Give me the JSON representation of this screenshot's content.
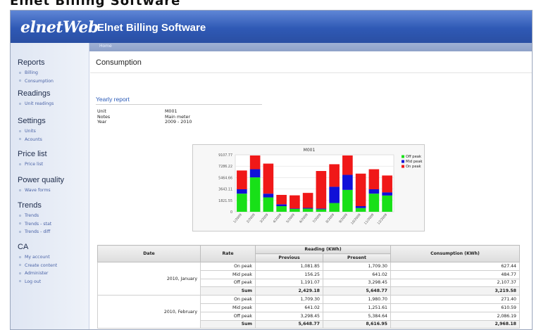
{
  "app": {
    "logo": "elnetWeb",
    "title": "Elnet Billing Software"
  },
  "breadcrumb": "Home",
  "sidebar": {
    "sections": [
      {
        "title": "Reports",
        "items": [
          "Billing",
          "Consumption"
        ]
      },
      {
        "title": "Readings",
        "items": [
          "Unit readings"
        ]
      },
      {
        "title": "Settings",
        "items": [
          "Units",
          "Acounts"
        ]
      },
      {
        "title": "Price list",
        "items": [
          "Price list"
        ]
      },
      {
        "title": "Power quality",
        "items": [
          "Wave forms"
        ]
      },
      {
        "title": "Trends",
        "items": [
          "Trends",
          "Trends - stat",
          "Trends - diff"
        ]
      },
      {
        "title": "CA",
        "items": [
          "My account",
          "Create content",
          "Administer",
          "Log out"
        ]
      }
    ]
  },
  "page": {
    "title": "Consumption",
    "report_title": "Yearly report",
    "meta": [
      {
        "key": "Unit",
        "value": "M001"
      },
      {
        "key": "Notes",
        "value": "Main meter"
      },
      {
        "key": "Year",
        "value": "2009 - 2010"
      }
    ]
  },
  "chart_data": {
    "type": "bar",
    "stacked": true,
    "title": "M001",
    "categories": [
      "1/2009",
      "2/2009",
      "3/2009",
      "4/2009",
      "5/2009",
      "6/2009",
      "7/2009",
      "8/2009",
      "9/2009",
      "10/2009",
      "11/2009",
      "12/2009"
    ],
    "y_ticks": [
      "0",
      "1821.55",
      "3643.11",
      "5464.66",
      "7286.22",
      "9107.77"
    ],
    "ylim": [
      0,
      9107.77
    ],
    "series": [
      {
        "name": "Off peak",
        "color": "#18e018",
        "values": [
          2900,
          5500,
          2300,
          900,
          450,
          500,
          400,
          1400,
          3500,
          600,
          2900,
          2600
        ]
      },
      {
        "name": "Mid peak",
        "color": "#1010d8",
        "values": [
          700,
          1300,
          600,
          300,
          80,
          120,
          120,
          2600,
          2400,
          300,
          700,
          500
        ]
      },
      {
        "name": "On peak",
        "color": "#f01818",
        "values": [
          3000,
          2200,
          4800,
          1500,
          2100,
          2400,
          6000,
          3600,
          3100,
          5200,
          3200,
          2700
        ]
      }
    ],
    "legend_position": "top-right",
    "grid": true
  },
  "table": {
    "headers": {
      "date": "Date",
      "rate": "Rate",
      "reading": "Reading (KWh)",
      "previous": "Previous",
      "present": "Present",
      "consumption": "Consumption (KWh)"
    },
    "groups": [
      {
        "date": "2010, January",
        "rows": [
          {
            "rate": "On peak",
            "previous": "1,081.85",
            "present": "1,709.30",
            "consumption": "627.44"
          },
          {
            "rate": "Mid peak",
            "previous": "156.25",
            "present": "641.02",
            "consumption": "484.77"
          },
          {
            "rate": "Off peak",
            "previous": "1,191.07",
            "present": "3,298.45",
            "consumption": "2,107.37"
          },
          {
            "rate": "Sum",
            "previous": "2,429.18",
            "present": "5,648.77",
            "consumption": "3,219.58",
            "sum": true
          }
        ]
      },
      {
        "date": "2010, February",
        "rows": [
          {
            "rate": "On peak",
            "previous": "1,709.30",
            "present": "1,980.70",
            "consumption": "271.40"
          },
          {
            "rate": "Mid peak",
            "previous": "641.02",
            "present": "1,251.61",
            "consumption": "610.59"
          },
          {
            "rate": "Off peak",
            "previous": "3,298.45",
            "present": "5,384.64",
            "consumption": "2,086.19"
          },
          {
            "rate": "Sum",
            "previous": "5,648.77",
            "present": "8,616.95",
            "consumption": "2,968.18",
            "sum": true
          }
        ]
      }
    ]
  }
}
